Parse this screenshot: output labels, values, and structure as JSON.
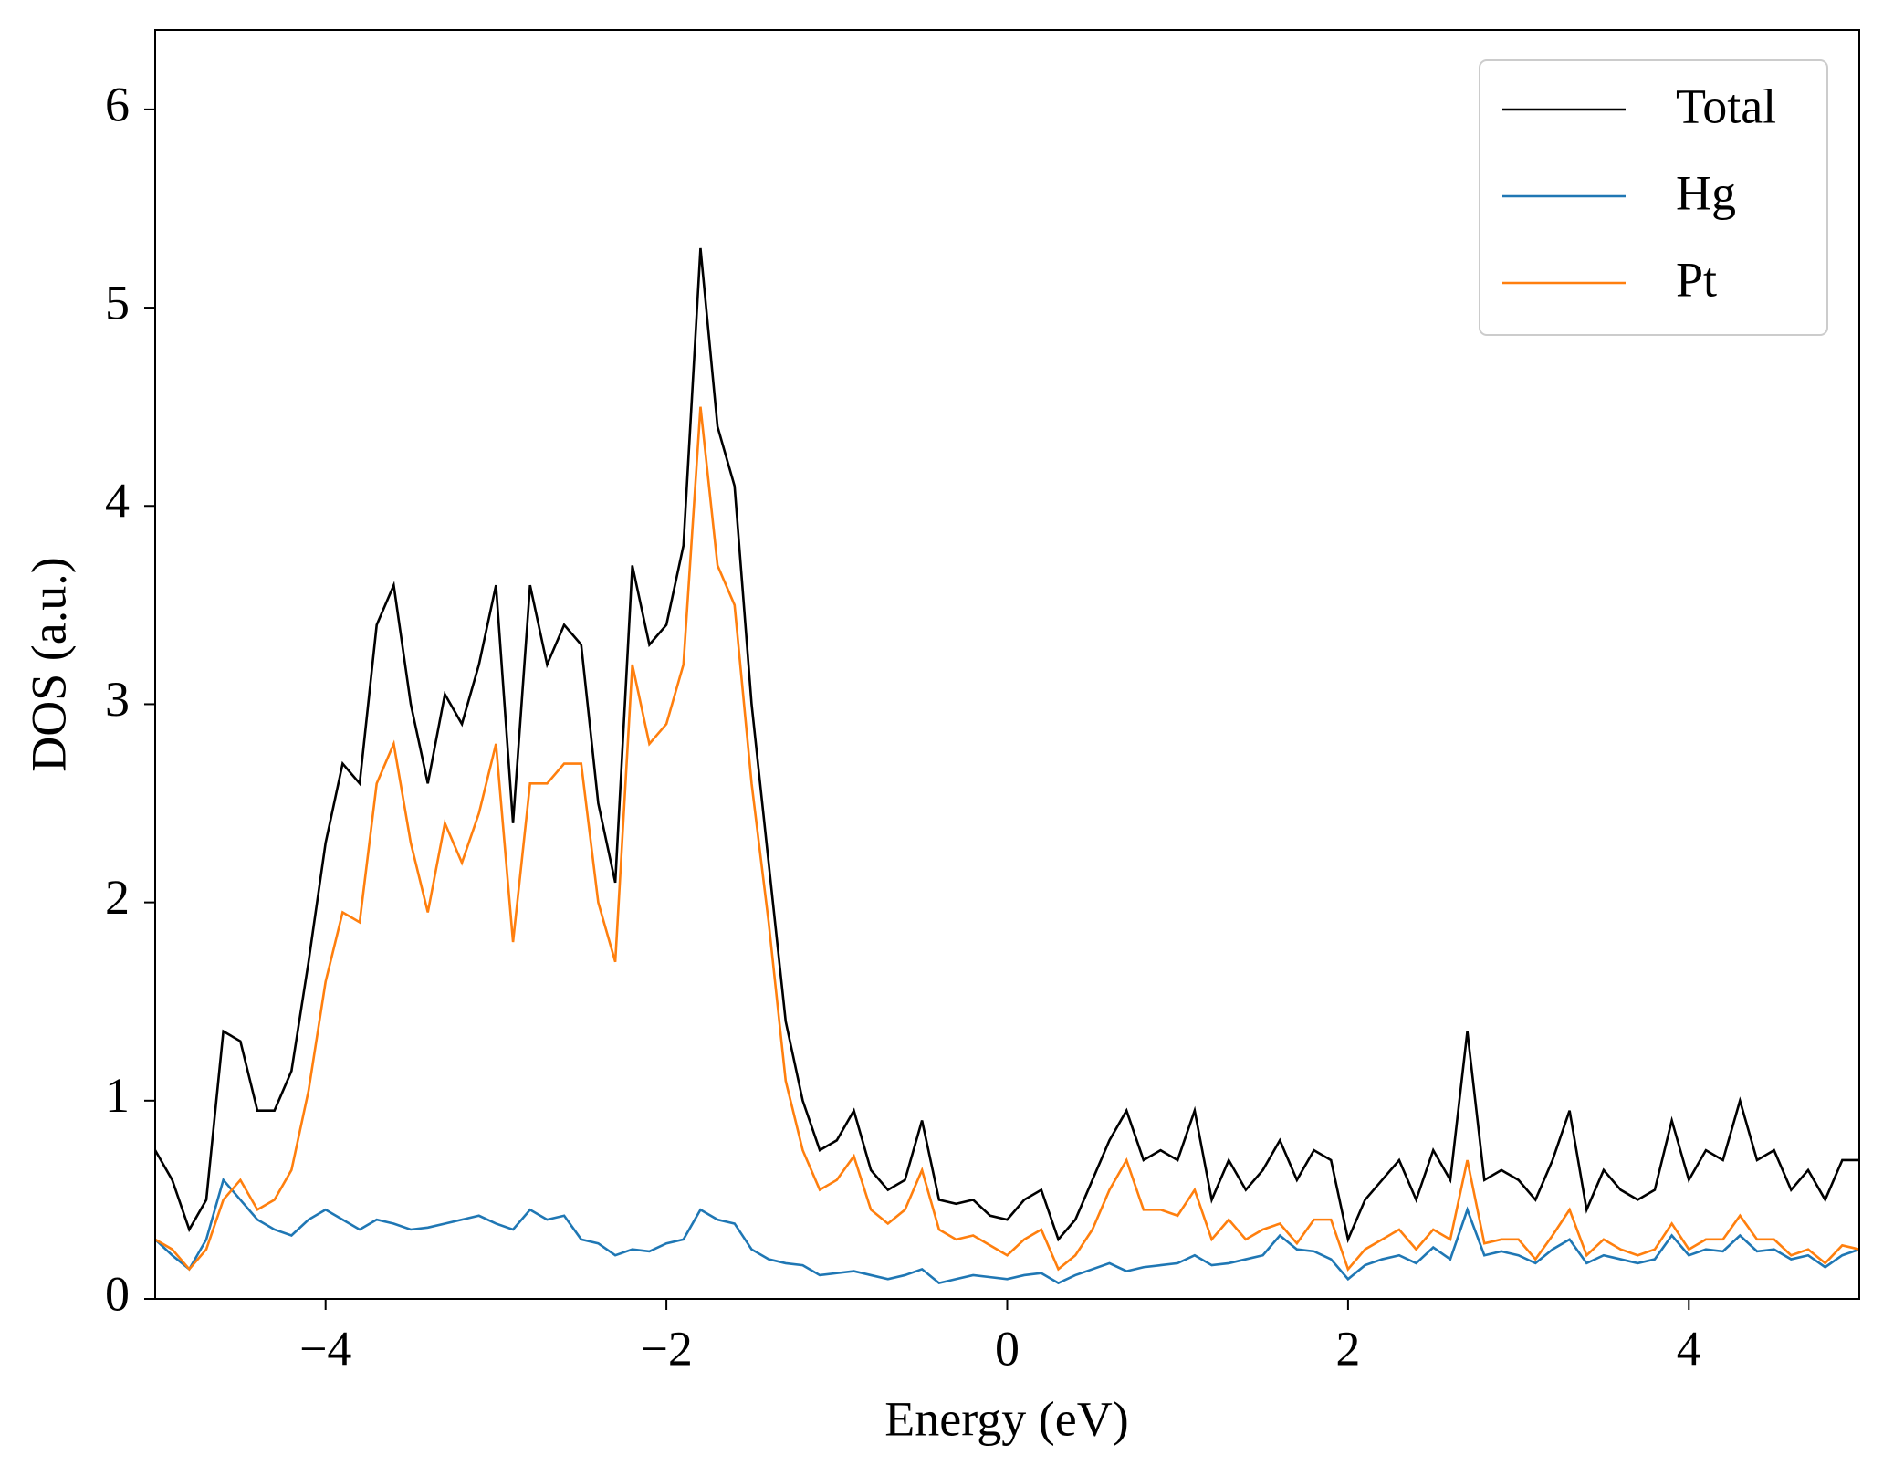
{
  "chart_data": {
    "type": "line",
    "xlabel": "Energy (eV)",
    "ylabel": "DOS (a.u.)",
    "xlim": [
      -5,
      5
    ],
    "ylim": [
      0,
      6.4
    ],
    "xticks": [
      {
        "value": -4,
        "label": "−4"
      },
      {
        "value": -2,
        "label": "−2"
      },
      0,
      2,
      4
    ],
    "yticks": [
      0,
      1,
      2,
      3,
      4,
      5,
      6
    ],
    "legend": "upper right",
    "x": [
      -5.0,
      -4.9,
      -4.8,
      -4.7,
      -4.6,
      -4.5,
      -4.4,
      -4.3,
      -4.2,
      -4.1,
      -4.0,
      -3.9,
      -3.8,
      -3.7,
      -3.6,
      -3.5,
      -3.4,
      -3.3,
      -3.2,
      -3.1,
      -3.0,
      -2.9,
      -2.8,
      -2.7,
      -2.6,
      -2.5,
      -2.4,
      -2.3,
      -2.2,
      -2.1,
      -2.0,
      -1.9,
      -1.8,
      -1.7,
      -1.6,
      -1.5,
      -1.4,
      -1.3,
      -1.2,
      -1.1,
      -1.0,
      -0.9,
      -0.8,
      -0.7,
      -0.6,
      -0.5,
      -0.4,
      -0.3,
      -0.2,
      -0.1,
      0.0,
      0.1,
      0.2,
      0.3,
      0.4,
      0.5,
      0.6,
      0.7,
      0.8,
      0.9,
      1.0,
      1.1,
      1.2,
      1.3,
      1.4,
      1.5,
      1.6,
      1.7,
      1.8,
      1.9,
      2.0,
      2.1,
      2.2,
      2.3,
      2.4,
      2.5,
      2.6,
      2.7,
      2.8,
      2.9,
      3.0,
      3.1,
      3.2,
      3.3,
      3.4,
      3.5,
      3.6,
      3.7,
      3.8,
      3.9,
      4.0,
      4.1,
      4.2,
      4.3,
      4.4,
      4.5,
      4.6,
      4.7,
      4.8,
      4.9,
      5.0
    ],
    "series": [
      {
        "name": "Total",
        "color": "#000000",
        "values": [
          0.75,
          0.6,
          0.35,
          0.5,
          1.35,
          1.3,
          0.95,
          0.95,
          1.15,
          1.7,
          2.3,
          2.7,
          2.6,
          3.4,
          3.6,
          3.0,
          2.6,
          3.05,
          2.9,
          3.2,
          3.6,
          2.4,
          3.6,
          3.2,
          3.4,
          3.3,
          2.5,
          2.1,
          3.7,
          3.3,
          3.4,
          3.8,
          5.3,
          4.4,
          4.1,
          3.0,
          2.2,
          1.4,
          1.0,
          0.75,
          0.8,
          0.95,
          0.65,
          0.55,
          0.6,
          0.9,
          0.5,
          0.48,
          0.5,
          0.42,
          0.4,
          0.5,
          0.55,
          0.3,
          0.4,
          0.6,
          0.8,
          0.95,
          0.7,
          0.75,
          0.7,
          0.95,
          0.5,
          0.7,
          0.55,
          0.65,
          0.8,
          0.6,
          0.75,
          0.7,
          0.3,
          0.5,
          0.6,
          0.7,
          0.5,
          0.75,
          0.6,
          1.35,
          0.6,
          0.65,
          0.6,
          0.5,
          0.7,
          0.95,
          0.45,
          0.65,
          0.55,
          0.5,
          0.55,
          0.9,
          0.6,
          0.75,
          0.7,
          1.0,
          0.7,
          0.75,
          0.55,
          0.65,
          0.5,
          0.7,
          0.7
        ]
      },
      {
        "name": "Hg",
        "color": "#1f77b4",
        "values": [
          0.3,
          0.22,
          0.15,
          0.3,
          0.6,
          0.5,
          0.4,
          0.35,
          0.32,
          0.4,
          0.45,
          0.4,
          0.35,
          0.4,
          0.38,
          0.35,
          0.36,
          0.38,
          0.4,
          0.42,
          0.38,
          0.35,
          0.45,
          0.4,
          0.42,
          0.3,
          0.28,
          0.22,
          0.25,
          0.24,
          0.28,
          0.3,
          0.45,
          0.4,
          0.38,
          0.25,
          0.2,
          0.18,
          0.17,
          0.12,
          0.13,
          0.14,
          0.12,
          0.1,
          0.12,
          0.15,
          0.08,
          0.1,
          0.12,
          0.11,
          0.1,
          0.12,
          0.13,
          0.08,
          0.12,
          0.15,
          0.18,
          0.14,
          0.16,
          0.17,
          0.18,
          0.22,
          0.17,
          0.18,
          0.2,
          0.22,
          0.32,
          0.25,
          0.24,
          0.2,
          0.1,
          0.17,
          0.2,
          0.22,
          0.18,
          0.26,
          0.2,
          0.45,
          0.22,
          0.24,
          0.22,
          0.18,
          0.25,
          0.3,
          0.18,
          0.22,
          0.2,
          0.18,
          0.2,
          0.32,
          0.22,
          0.25,
          0.24,
          0.32,
          0.24,
          0.25,
          0.2,
          0.22,
          0.16,
          0.22,
          0.25
        ]
      },
      {
        "name": "Pt",
        "color": "#ff7f0e",
        "values": [
          0.3,
          0.25,
          0.15,
          0.25,
          0.5,
          0.6,
          0.45,
          0.5,
          0.65,
          1.05,
          1.6,
          1.95,
          1.9,
          2.6,
          2.8,
          2.3,
          1.95,
          2.4,
          2.2,
          2.45,
          2.8,
          1.8,
          2.6,
          2.6,
          2.7,
          2.7,
          2.0,
          1.7,
          3.2,
          2.8,
          2.9,
          3.2,
          4.5,
          3.7,
          3.5,
          2.6,
          1.9,
          1.1,
          0.75,
          0.55,
          0.6,
          0.72,
          0.45,
          0.38,
          0.45,
          0.65,
          0.35,
          0.3,
          0.32,
          0.27,
          0.22,
          0.3,
          0.35,
          0.15,
          0.22,
          0.35,
          0.55,
          0.7,
          0.45,
          0.45,
          0.42,
          0.55,
          0.3,
          0.4,
          0.3,
          0.35,
          0.38,
          0.28,
          0.4,
          0.4,
          0.15,
          0.25,
          0.3,
          0.35,
          0.25,
          0.35,
          0.3,
          0.7,
          0.28,
          0.3,
          0.3,
          0.2,
          0.32,
          0.45,
          0.22,
          0.3,
          0.25,
          0.22,
          0.25,
          0.38,
          0.25,
          0.3,
          0.3,
          0.42,
          0.3,
          0.3,
          0.22,
          0.25,
          0.18,
          0.27,
          0.25
        ]
      }
    ]
  }
}
